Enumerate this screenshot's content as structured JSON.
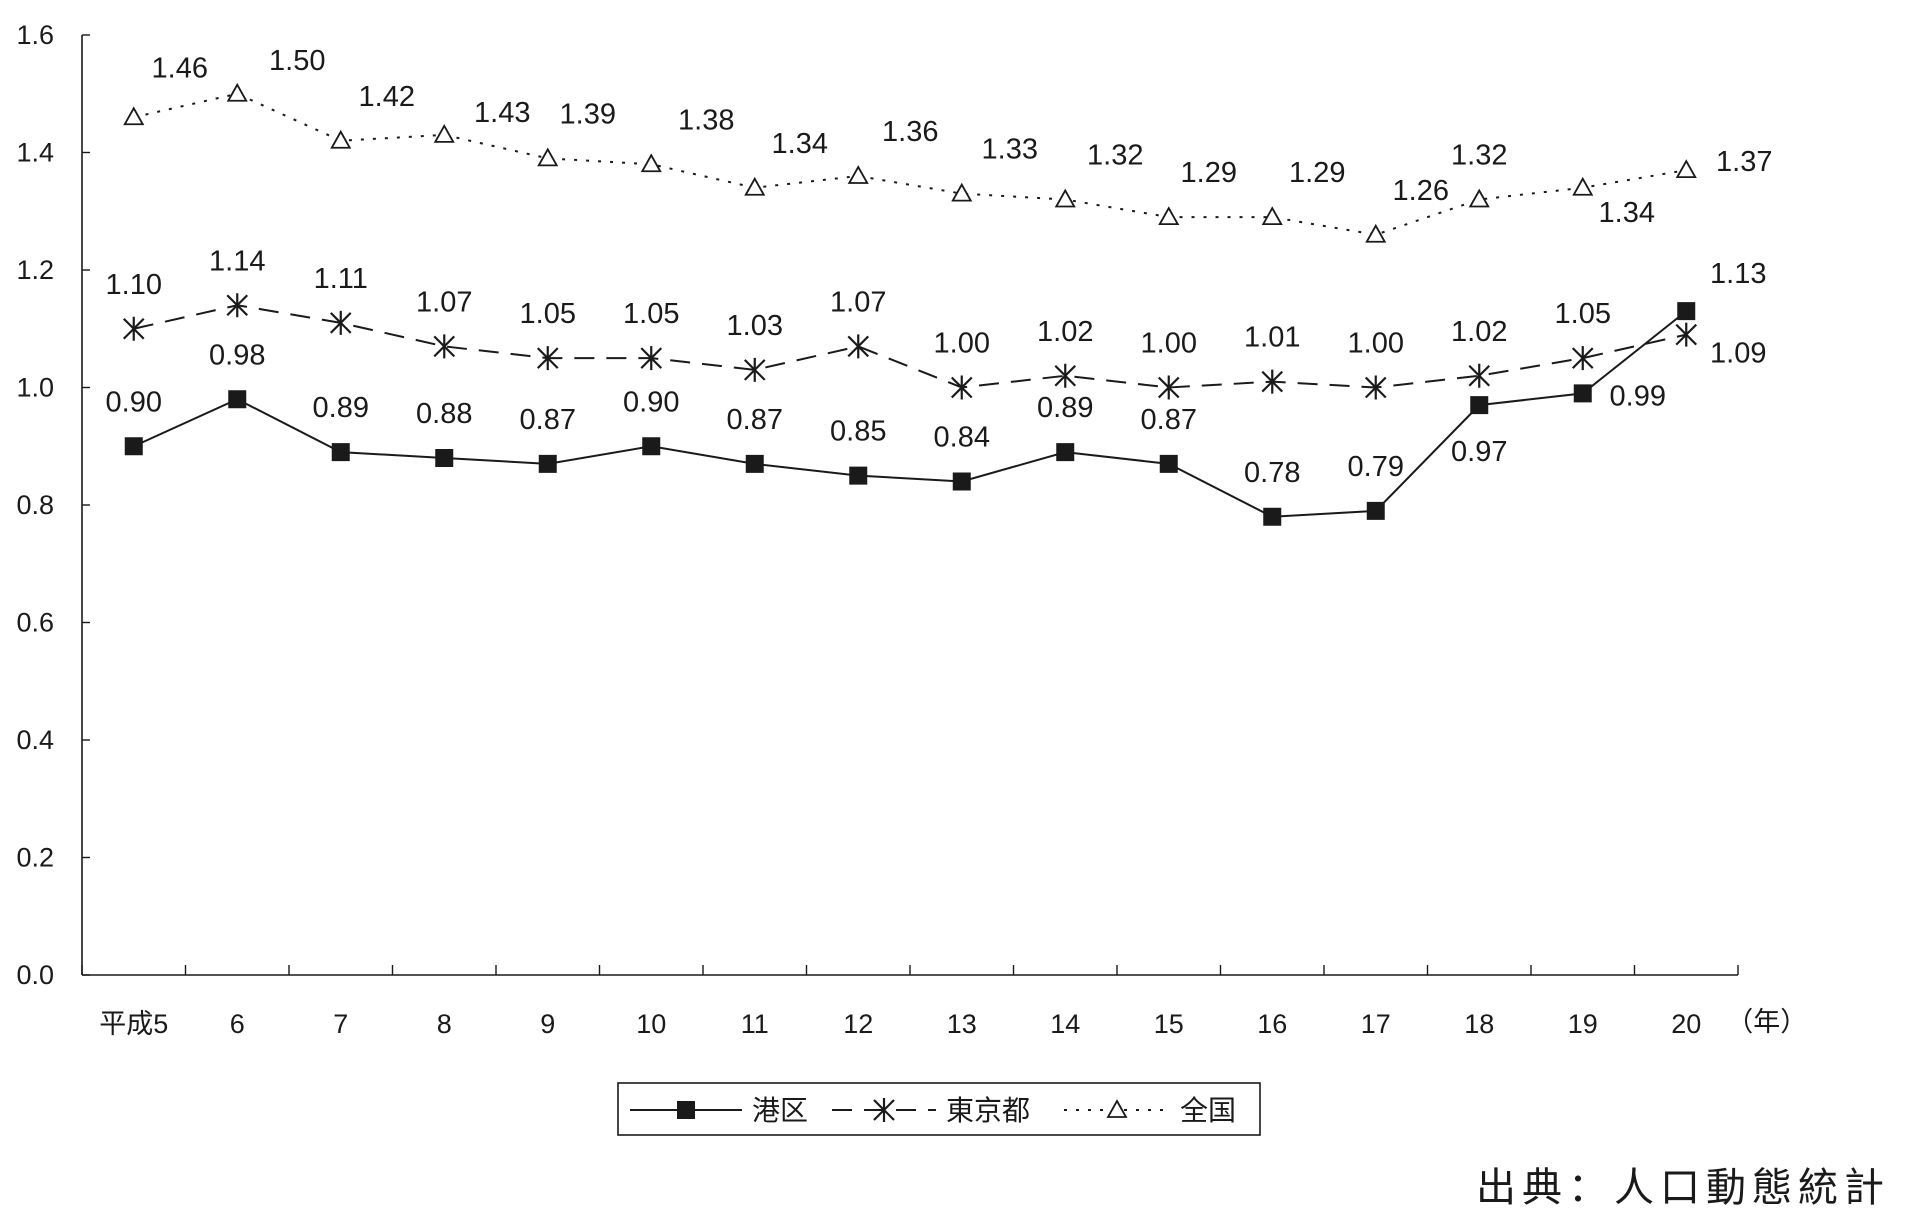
{
  "chart_data": {
    "type": "line",
    "title": "",
    "categories": [
      "平成5",
      "6",
      "7",
      "8",
      "9",
      "10",
      "11",
      "12",
      "13",
      "14",
      "15",
      "16",
      "17",
      "18",
      "19",
      "20"
    ],
    "xlabel": "（年）",
    "ylabel": "",
    "ylim": [
      0.0,
      1.6
    ],
    "yticks": [
      "0.0",
      "0.2",
      "0.4",
      "0.6",
      "0.8",
      "1.0",
      "1.2",
      "1.4",
      "1.6"
    ],
    "grid": false,
    "legend_position": "bottom-center",
    "series": [
      {
        "name": "港区",
        "marker": "filled-square",
        "line_style": "solid",
        "values": [
          0.9,
          0.98,
          0.89,
          0.88,
          0.87,
          0.9,
          0.87,
          0.85,
          0.84,
          0.89,
          0.87,
          0.78,
          0.79,
          0.97,
          0.99,
          1.13
        ],
        "labels": [
          "0.90",
          "0.98",
          "0.89",
          "0.88",
          "0.87",
          "0.90",
          "0.87",
          "0.85",
          "0.84",
          "0.89",
          "0.87",
          "0.78",
          "0.79",
          "0.97",
          "0.99",
          "1.13"
        ]
      },
      {
        "name": "東京都",
        "marker": "asterisk",
        "line_style": "dashed",
        "values": [
          1.1,
          1.14,
          1.11,
          1.07,
          1.05,
          1.05,
          1.03,
          1.07,
          1.0,
          1.02,
          1.0,
          1.01,
          1.0,
          1.02,
          1.05,
          1.09
        ],
        "labels": [
          "1.10",
          "1.14",
          "1.11",
          "1.07",
          "1.05",
          "1.05",
          "1.03",
          "1.07",
          "1.00",
          "1.02",
          "1.00",
          "1.01",
          "1.00",
          "1.02",
          "1.05",
          "1.09"
        ]
      },
      {
        "name": "全国",
        "marker": "open-triangle",
        "line_style": "dotted",
        "values": [
          1.46,
          1.5,
          1.42,
          1.43,
          1.39,
          1.38,
          1.34,
          1.36,
          1.33,
          1.32,
          1.29,
          1.29,
          1.26,
          1.32,
          1.34,
          1.37
        ],
        "labels": [
          "1.46",
          "1.50",
          "1.42",
          "1.43",
          "1.39",
          "1.38",
          "1.34",
          "1.36",
          "1.33",
          "1.32",
          "1.29",
          "1.29",
          "1.26",
          "1.32",
          "1.34",
          "1.37"
        ]
      }
    ]
  },
  "source_note": "出典：人口動態統計",
  "colors": {
    "ink": "#1a1a1a",
    "background": "#ffffff"
  }
}
